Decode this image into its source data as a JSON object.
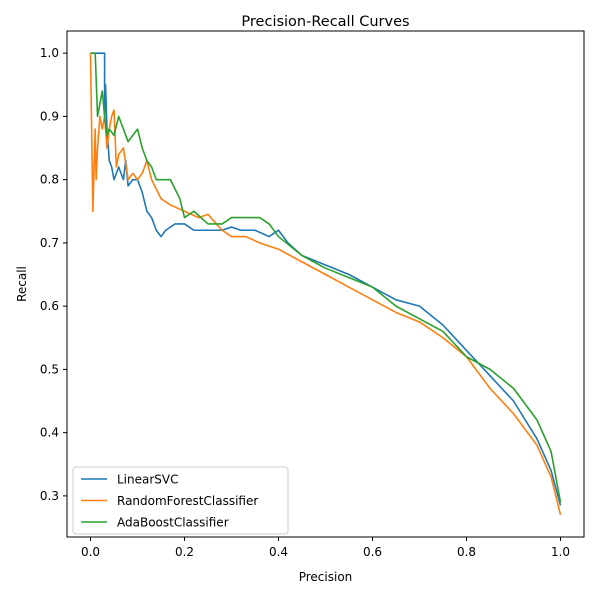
{
  "chart_data": {
    "type": "line",
    "title": "Precision-Recall Curves",
    "xlabel": "Precision",
    "ylabel": "Recall",
    "xlim": [
      -0.05,
      1.05
    ],
    "ylim": [
      0.235,
      1.035
    ],
    "xticks": [
      0.0,
      0.2,
      0.4,
      0.6,
      0.8,
      1.0
    ],
    "xtick_labels": [
      "0.0",
      "0.2",
      "0.4",
      "0.6",
      "0.8",
      "1.0"
    ],
    "yticks": [
      0.3,
      0.4,
      0.5,
      0.6,
      0.7,
      0.8,
      0.9,
      1.0
    ],
    "ytick_labels": [
      "0.3",
      "0.4",
      "0.5",
      "0.6",
      "0.7",
      "0.8",
      "0.9",
      "1.0"
    ],
    "grid": false,
    "legend_position": "lower left",
    "series": [
      {
        "name": "LinearSVC",
        "color": "#1f77b4",
        "x": [
          0.0,
          0.03,
          0.03,
          0.032,
          0.035,
          0.04,
          0.045,
          0.05,
          0.06,
          0.07,
          0.075,
          0.08,
          0.09,
          0.1,
          0.11,
          0.12,
          0.13,
          0.14,
          0.15,
          0.16,
          0.18,
          0.2,
          0.22,
          0.24,
          0.26,
          0.28,
          0.3,
          0.32,
          0.35,
          0.38,
          0.4,
          0.42,
          0.45,
          0.5,
          0.55,
          0.6,
          0.65,
          0.7,
          0.75,
          0.8,
          0.85,
          0.9,
          0.95,
          0.98,
          1.0
        ],
        "y": [
          1.0,
          1.0,
          0.9,
          0.95,
          0.88,
          0.83,
          0.82,
          0.8,
          0.82,
          0.8,
          0.83,
          0.79,
          0.8,
          0.8,
          0.78,
          0.75,
          0.74,
          0.72,
          0.71,
          0.72,
          0.73,
          0.73,
          0.72,
          0.72,
          0.72,
          0.72,
          0.725,
          0.72,
          0.72,
          0.71,
          0.72,
          0.7,
          0.68,
          0.665,
          0.65,
          0.63,
          0.61,
          0.6,
          0.57,
          0.53,
          0.49,
          0.45,
          0.39,
          0.34,
          0.285
        ]
      },
      {
        "name": "RandomForestClassifier",
        "color": "#ff7f0e",
        "x": [
          0.0,
          0.005,
          0.01,
          0.012,
          0.015,
          0.02,
          0.025,
          0.03,
          0.035,
          0.04,
          0.045,
          0.05,
          0.055,
          0.06,
          0.07,
          0.08,
          0.09,
          0.1,
          0.11,
          0.12,
          0.13,
          0.15,
          0.17,
          0.2,
          0.23,
          0.25,
          0.28,
          0.3,
          0.33,
          0.36,
          0.4,
          0.45,
          0.5,
          0.55,
          0.6,
          0.65,
          0.7,
          0.75,
          0.8,
          0.85,
          0.9,
          0.95,
          0.98,
          1.0
        ],
        "y": [
          1.0,
          0.75,
          0.88,
          0.8,
          0.85,
          0.9,
          0.88,
          0.9,
          0.85,
          0.88,
          0.9,
          0.91,
          0.82,
          0.84,
          0.85,
          0.8,
          0.81,
          0.8,
          0.81,
          0.83,
          0.8,
          0.77,
          0.76,
          0.75,
          0.74,
          0.745,
          0.72,
          0.71,
          0.71,
          0.7,
          0.69,
          0.67,
          0.65,
          0.63,
          0.61,
          0.59,
          0.575,
          0.55,
          0.52,
          0.47,
          0.43,
          0.38,
          0.33,
          0.27
        ]
      },
      {
        "name": "AdaBoostClassifier",
        "color": "#2ca02c",
        "x": [
          0.0,
          0.01,
          0.015,
          0.02,
          0.025,
          0.03,
          0.035,
          0.04,
          0.05,
          0.06,
          0.07,
          0.08,
          0.09,
          0.1,
          0.11,
          0.12,
          0.13,
          0.14,
          0.15,
          0.17,
          0.19,
          0.2,
          0.22,
          0.25,
          0.28,
          0.3,
          0.33,
          0.36,
          0.38,
          0.4,
          0.45,
          0.5,
          0.55,
          0.6,
          0.65,
          0.7,
          0.75,
          0.8,
          0.85,
          0.9,
          0.95,
          0.98,
          1.0
        ],
        "y": [
          1.0,
          1.0,
          0.9,
          0.92,
          0.94,
          0.9,
          0.87,
          0.88,
          0.87,
          0.9,
          0.88,
          0.86,
          0.87,
          0.88,
          0.85,
          0.83,
          0.82,
          0.8,
          0.8,
          0.8,
          0.77,
          0.74,
          0.75,
          0.73,
          0.73,
          0.74,
          0.74,
          0.74,
          0.73,
          0.71,
          0.68,
          0.66,
          0.645,
          0.63,
          0.6,
          0.58,
          0.56,
          0.52,
          0.5,
          0.47,
          0.42,
          0.37,
          0.29
        ]
      }
    ]
  }
}
